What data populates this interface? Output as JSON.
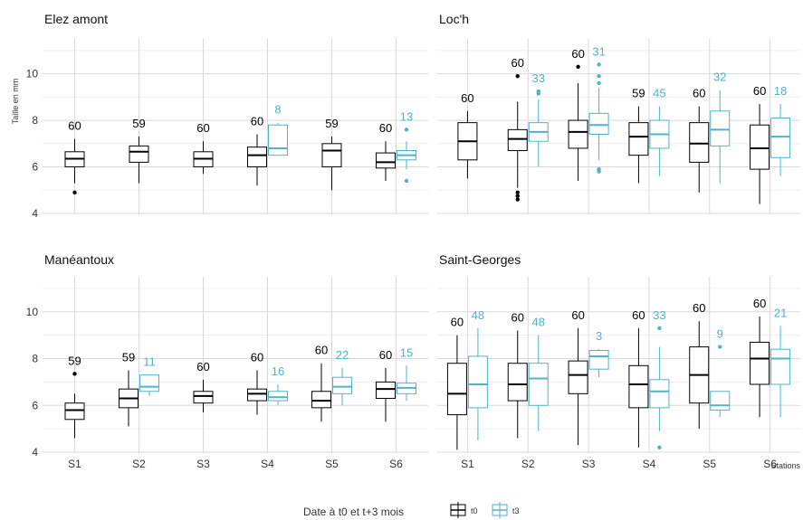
{
  "chart_data": {
    "type": "box",
    "ylabel": "Taille en mm",
    "xlabel": "Stations",
    "ylim": [
      4,
      11.5
    ],
    "yticks": [
      4,
      6,
      8,
      10
    ],
    "categories": [
      "S1",
      "S2",
      "S3",
      "S4",
      "S5",
      "S6"
    ],
    "legend": {
      "title": "Date à t0 et t+3 mois",
      "position": "bottom",
      "entries": [
        {
          "label": "t0",
          "color": "#000000"
        },
        {
          "label": "t3",
          "color": "#4fb3c9"
        }
      ]
    },
    "panels": [
      {
        "title": "Elez amont",
        "boxes": [
          {
            "station": "S1",
            "series": "t0",
            "min": 5.3,
            "q1": 6.0,
            "median": 6.35,
            "q3": 6.65,
            "max": 7.2,
            "outliers": [
              4.9
            ],
            "n": "60"
          },
          {
            "station": "S2",
            "series": "t0",
            "min": 5.3,
            "q1": 6.2,
            "median": 6.65,
            "q3": 6.9,
            "max": 7.3,
            "outliers": [],
            "n": "59"
          },
          {
            "station": "S3",
            "series": "t0",
            "min": 5.7,
            "q1": 6.0,
            "median": 6.35,
            "q3": 6.65,
            "max": 7.1,
            "outliers": [],
            "n": "60"
          },
          {
            "station": "S4",
            "series": "t0",
            "min": 5.2,
            "q1": 6.0,
            "median": 6.5,
            "q3": 6.85,
            "max": 7.4,
            "outliers": [],
            "n": "60"
          },
          {
            "station": "S4",
            "series": "t3",
            "min": 6.5,
            "q1": 6.5,
            "median": 6.8,
            "q3": 7.8,
            "max": 7.9,
            "outliers": [],
            "n": "8"
          },
          {
            "station": "S5",
            "series": "t0",
            "min": 5.0,
            "q1": 6.0,
            "median": 6.7,
            "q3": 7.0,
            "max": 7.3,
            "outliers": [],
            "n": "59"
          },
          {
            "station": "S6",
            "series": "t0",
            "min": 5.4,
            "q1": 5.95,
            "median": 6.2,
            "q3": 6.6,
            "max": 7.1,
            "outliers": [],
            "n": "60"
          },
          {
            "station": "S6",
            "series": "t3",
            "min": 5.9,
            "q1": 6.3,
            "median": 6.5,
            "q3": 6.7,
            "max": 7.1,
            "outliers": [
              7.6,
              5.4
            ],
            "n": "13"
          }
        ]
      },
      {
        "title": "Loc'h",
        "boxes": [
          {
            "station": "S1",
            "series": "t0",
            "min": 5.5,
            "q1": 6.3,
            "median": 7.1,
            "q3": 7.9,
            "max": 8.4,
            "outliers": [],
            "n": "60"
          },
          {
            "station": "S2",
            "series": "t0",
            "min": 5.1,
            "q1": 6.7,
            "median": 7.2,
            "q3": 7.6,
            "max": 8.8,
            "outliers": [
              9.9,
              4.9,
              4.75,
              4.6
            ],
            "n": "60"
          },
          {
            "station": "S2",
            "series": "t3",
            "min": 6.0,
            "q1": 7.1,
            "median": 7.5,
            "q3": 7.9,
            "max": 8.9,
            "outliers": [
              9.25,
              9.15
            ],
            "n": "33"
          },
          {
            "station": "S3",
            "series": "t0",
            "min": 5.4,
            "q1": 6.8,
            "median": 7.5,
            "q3": 8.0,
            "max": 9.6,
            "outliers": [
              10.3
            ],
            "n": "60"
          },
          {
            "station": "S3",
            "series": "t3",
            "min": 6.3,
            "q1": 7.4,
            "median": 7.8,
            "q3": 8.3,
            "max": 9.4,
            "outliers": [
              10.4,
              9.9,
              9.6,
              5.9,
              5.8
            ],
            "n": "31"
          },
          {
            "station": "S4",
            "series": "t0",
            "min": 5.3,
            "q1": 6.5,
            "median": 7.3,
            "q3": 7.9,
            "max": 8.6,
            "outliers": [],
            "n": "59"
          },
          {
            "station": "S4",
            "series": "t3",
            "min": 5.6,
            "q1": 6.8,
            "median": 7.4,
            "q3": 8.0,
            "max": 8.6,
            "outliers": [],
            "n": "45"
          },
          {
            "station": "S5",
            "series": "t0",
            "min": 4.9,
            "q1": 6.2,
            "median": 7.0,
            "q3": 7.9,
            "max": 8.6,
            "outliers": [],
            "n": "60"
          },
          {
            "station": "S5",
            "series": "t3",
            "min": 5.3,
            "q1": 6.9,
            "median": 7.6,
            "q3": 8.4,
            "max": 9.3,
            "outliers": [],
            "n": "32"
          },
          {
            "station": "S6",
            "series": "t0",
            "min": 4.4,
            "q1": 5.9,
            "median": 6.8,
            "q3": 7.8,
            "max": 8.7,
            "outliers": [],
            "n": "60"
          },
          {
            "station": "S6",
            "series": "t3",
            "min": 5.6,
            "q1": 6.4,
            "median": 7.3,
            "q3": 8.1,
            "max": 8.7,
            "outliers": [],
            "n": "18"
          }
        ]
      },
      {
        "title": "Manéantoux",
        "boxes": [
          {
            "station": "S1",
            "series": "t0",
            "min": 4.6,
            "q1": 5.4,
            "median": 5.8,
            "q3": 6.1,
            "max": 6.5,
            "outliers": [
              7.35
            ],
            "n": "59"
          },
          {
            "station": "S2",
            "series": "t0",
            "min": 5.1,
            "q1": 5.9,
            "median": 6.3,
            "q3": 6.7,
            "max": 7.5,
            "outliers": [],
            "n": "59"
          },
          {
            "station": "S2",
            "series": "t3",
            "min": 6.4,
            "q1": 6.6,
            "median": 6.8,
            "q3": 7.3,
            "max": 7.3,
            "outliers": [],
            "n": "11"
          },
          {
            "station": "S3",
            "series": "t0",
            "min": 5.7,
            "q1": 6.1,
            "median": 6.4,
            "q3": 6.6,
            "max": 7.1,
            "outliers": [],
            "n": "60"
          },
          {
            "station": "S4",
            "series": "t0",
            "min": 5.6,
            "q1": 6.2,
            "median": 6.5,
            "q3": 6.7,
            "max": 7.5,
            "outliers": [],
            "n": "60"
          },
          {
            "station": "S4",
            "series": "t3",
            "min": 6.0,
            "q1": 6.2,
            "median": 6.35,
            "q3": 6.6,
            "max": 6.9,
            "outliers": [],
            "n": "16"
          },
          {
            "station": "S5",
            "series": "t0",
            "min": 5.3,
            "q1": 5.9,
            "median": 6.2,
            "q3": 6.6,
            "max": 7.8,
            "outliers": [],
            "n": "60"
          },
          {
            "station": "S5",
            "series": "t3",
            "min": 6.0,
            "q1": 6.5,
            "median": 6.8,
            "q3": 7.2,
            "max": 7.6,
            "outliers": [],
            "n": "22"
          },
          {
            "station": "S6",
            "series": "t0",
            "min": 5.3,
            "q1": 6.3,
            "median": 6.7,
            "q3": 7.0,
            "max": 7.6,
            "outliers": [],
            "n": "60"
          },
          {
            "station": "S6",
            "series": "t3",
            "min": 6.2,
            "q1": 6.5,
            "median": 6.75,
            "q3": 6.95,
            "max": 7.7,
            "outliers": [],
            "n": "15"
          }
        ]
      },
      {
        "title": "Saint-Georges",
        "boxes": [
          {
            "station": "S1",
            "series": "t0",
            "min": 4.1,
            "q1": 5.6,
            "median": 6.5,
            "q3": 7.8,
            "max": 9.0,
            "outliers": [],
            "n": "60"
          },
          {
            "station": "S1",
            "series": "t3",
            "min": 4.5,
            "q1": 5.9,
            "median": 6.9,
            "q3": 8.1,
            "max": 9.3,
            "outliers": [],
            "n": "48"
          },
          {
            "station": "S2",
            "series": "t0",
            "min": 4.6,
            "q1": 6.2,
            "median": 6.9,
            "q3": 7.8,
            "max": 9.2,
            "outliers": [],
            "n": "60"
          },
          {
            "station": "S2",
            "series": "t3",
            "min": 4.9,
            "q1": 6.0,
            "median": 7.15,
            "q3": 7.8,
            "max": 9.0,
            "outliers": [],
            "n": "48"
          },
          {
            "station": "S3",
            "series": "t0",
            "min": 4.3,
            "q1": 6.5,
            "median": 7.3,
            "q3": 7.9,
            "max": 9.3,
            "outliers": [],
            "n": "60"
          },
          {
            "station": "S3",
            "series": "t3",
            "min": 7.2,
            "q1": 7.55,
            "median": 8.1,
            "q3": 8.35,
            "max": 8.4,
            "outliers": [],
            "n": "3"
          },
          {
            "station": "S4",
            "series": "t0",
            "min": 4.2,
            "q1": 5.9,
            "median": 6.9,
            "q3": 7.7,
            "max": 9.3,
            "outliers": [],
            "n": "60"
          },
          {
            "station": "S4",
            "series": "t3",
            "min": 4.9,
            "q1": 5.9,
            "median": 6.6,
            "q3": 7.1,
            "max": 8.5,
            "outliers": [
              9.3,
              4.2
            ],
            "n": "33"
          },
          {
            "station": "S5",
            "series": "t0",
            "min": 5.0,
            "q1": 6.1,
            "median": 7.3,
            "q3": 8.5,
            "max": 9.6,
            "outliers": [],
            "n": "60"
          },
          {
            "station": "S5",
            "series": "t3",
            "min": 5.5,
            "q1": 5.8,
            "median": 6.0,
            "q3": 6.6,
            "max": 6.6,
            "outliers": [
              8.5
            ],
            "n": "9"
          },
          {
            "station": "S6",
            "series": "t0",
            "min": 5.5,
            "q1": 6.9,
            "median": 8.0,
            "q3": 8.7,
            "max": 9.8,
            "outliers": [],
            "n": "60"
          },
          {
            "station": "S6",
            "series": "t3",
            "min": 5.5,
            "q1": 6.9,
            "median": 8.0,
            "q3": 8.4,
            "max": 9.4,
            "outliers": [],
            "n": "21"
          }
        ]
      }
    ]
  }
}
